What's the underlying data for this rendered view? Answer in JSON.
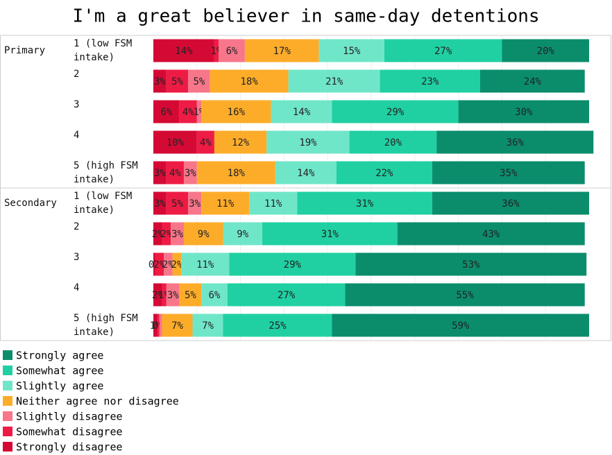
{
  "chart_data": {
    "type": "stacked-bar-horizontal",
    "title": "I'm a great believer in same-day detentions",
    "groups": [
      {
        "name": "Primary",
        "categories": [
          "1 (low FSM intake)",
          "2",
          "3",
          "4",
          "5 (high FSM intake)"
        ]
      },
      {
        "name": "Secondary",
        "categories": [
          "1 (low FSM intake)",
          "2",
          "3",
          "4",
          "5 (high FSM intake)"
        ]
      }
    ],
    "xlim": [
      0,
      100
    ],
    "series": [
      {
        "name": "Strongly disagree",
        "color": "#d40a35",
        "values": [
          14,
          3,
          6,
          10,
          3,
          3,
          2,
          0.4,
          2,
          1
        ],
        "value_labels": [
          "14%",
          "3%",
          "6%",
          "10%",
          "3%",
          "3%",
          "2%",
          "0%",
          "2%",
          "1%"
        ]
      },
      {
        "name": "Somewhat disagree",
        "color": "#ee1c45",
        "values": [
          1,
          5,
          4,
          4,
          4,
          5,
          2,
          2,
          1,
          0.4
        ],
        "value_labels": [
          "1%",
          "5%",
          "4%",
          "4%",
          "4%",
          "5%",
          "2%",
          "2%",
          "1%",
          "0%"
        ]
      },
      {
        "name": "Slightly disagree",
        "color": "#f7768a",
        "values": [
          6,
          5,
          1,
          0,
          3,
          3,
          3,
          2,
          3,
          0.6
        ],
        "value_labels": [
          "6%",
          "5%",
          "1%",
          null,
          "3%",
          "3%",
          "3%",
          "2%",
          "3%",
          null
        ]
      },
      {
        "name": "Neither agree nor disagree",
        "color": "#fdac2a",
        "values": [
          17,
          18,
          16,
          12,
          18,
          11,
          9,
          2,
          5,
          7
        ],
        "value_labels": [
          "17%",
          "18%",
          "16%",
          "12%",
          "18%",
          "11%",
          "9%",
          "2%",
          "5%",
          "7%"
        ]
      },
      {
        "name": "Slightly agree",
        "color": "#70e6c8",
        "values": [
          15,
          21,
          14,
          19,
          14,
          11,
          9,
          11,
          6,
          7
        ],
        "value_labels": [
          "15%",
          "21%",
          "14%",
          "19%",
          "14%",
          "11%",
          "9%",
          "11%",
          "6%",
          "7%"
        ]
      },
      {
        "name": "Somewhat agree",
        "color": "#20d0a2",
        "values": [
          27,
          23,
          29,
          20,
          22,
          31,
          31,
          29,
          27,
          25
        ],
        "value_labels": [
          "27%",
          "23%",
          "29%",
          "20%",
          "22%",
          "31%",
          "31%",
          "29%",
          "27%",
          "25%"
        ]
      },
      {
        "name": "Strongly agree",
        "color": "#0b8d6c",
        "values": [
          20,
          24,
          30,
          36,
          35,
          36,
          43,
          53,
          55,
          59
        ],
        "value_labels": [
          "20%",
          "24%",
          "30%",
          "36%",
          "35%",
          "36%",
          "43%",
          "53%",
          "55%",
          "59%"
        ]
      }
    ]
  }
}
